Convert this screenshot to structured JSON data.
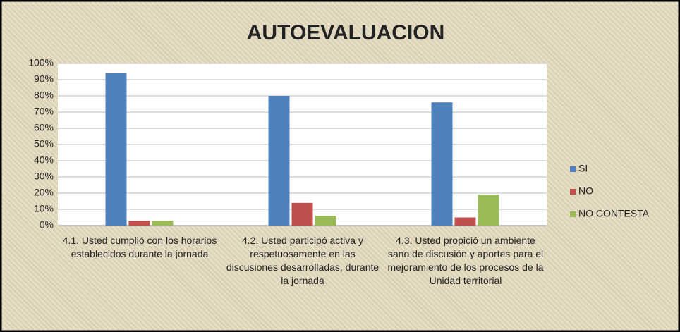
{
  "chart_data": {
    "type": "bar",
    "title": "AUTOEVALUACION",
    "categories": [
      "4.1. Usted cumplió con los horarios establecidos durante la jornada",
      "4.2. Usted participó activa y respetuosamente en las discusiones desarrolladas, durante la jornada",
      "4.3. Usted propició un ambiente sano de discusión y aportes para el mejoramiento de los procesos de la Unidad territorial"
    ],
    "series": [
      {
        "name": "SI",
        "color": "#4f81bd",
        "values": [
          94,
          80,
          76
        ]
      },
      {
        "name": "NO",
        "color": "#c0504d",
        "values": [
          3,
          14,
          5
        ]
      },
      {
        "name": "NO CONTESTA",
        "color": "#9bbb59",
        "values": [
          3,
          6,
          19
        ]
      }
    ],
    "ylim": [
      0,
      100
    ],
    "yticks": [
      {
        "value": 0,
        "label": "0%"
      },
      {
        "value": 10,
        "label": "10%"
      },
      {
        "value": 20,
        "label": "20%"
      },
      {
        "value": 30,
        "label": "30%"
      },
      {
        "value": 40,
        "label": "40%"
      },
      {
        "value": 50,
        "label": "50%"
      },
      {
        "value": 60,
        "label": "60%"
      },
      {
        "value": 70,
        "label": "70%"
      },
      {
        "value": 80,
        "label": "80%"
      },
      {
        "value": 90,
        "label": "90%"
      },
      {
        "value": 100,
        "label": "100%"
      }
    ],
    "grid": true,
    "legend": "right"
  }
}
